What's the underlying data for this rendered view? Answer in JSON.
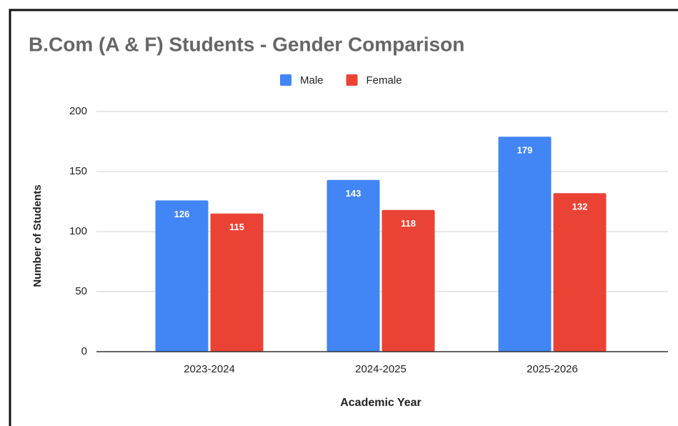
{
  "chart_data": {
    "type": "bar",
    "title": "B.Com (A & F) Students - Gender Comparison",
    "categories": [
      "2023-2024",
      "2024-2025",
      "2025-2026"
    ],
    "series": [
      {
        "name": "Male",
        "color": "#4285f4",
        "values": [
          126,
          143,
          179
        ]
      },
      {
        "name": "Female",
        "color": "#ea4335",
        "values": [
          115,
          118,
          132
        ]
      }
    ],
    "x_label": "Academic Year",
    "y_label": "Number of Students",
    "ylim": [
      0,
      200
    ],
    "yticks": [
      0,
      50,
      100,
      150,
      200
    ],
    "grid": true,
    "legend": "top"
  }
}
